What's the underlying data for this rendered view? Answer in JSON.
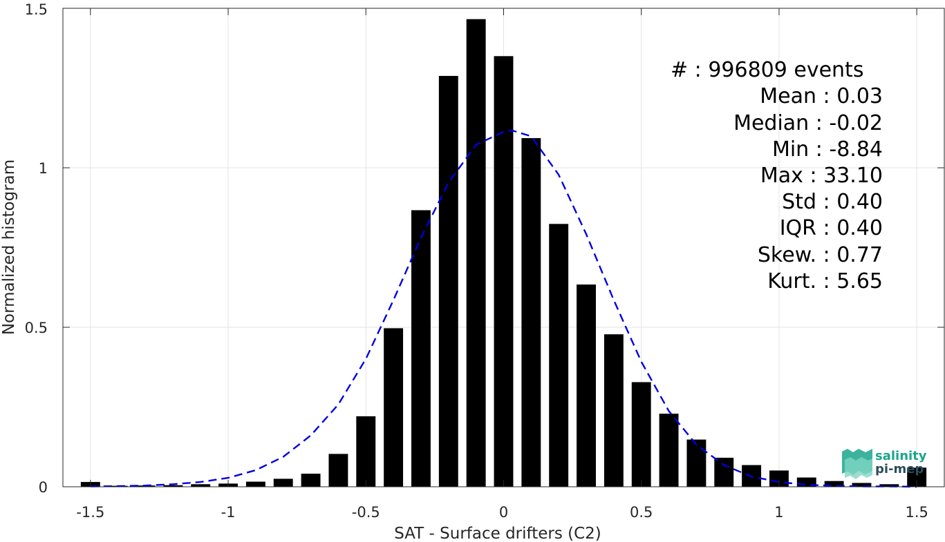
{
  "chart_data": {
    "type": "bar",
    "xlabel": "SAT - Surface drifters (C2)",
    "ylabel": "Normalized histogram",
    "xlim": [
      -1.6,
      1.6
    ],
    "ylim": [
      0,
      1.5
    ],
    "xticks": [
      -1.5,
      -1,
      -0.5,
      0,
      0.5,
      1,
      1.5
    ],
    "xtick_labels": [
      "-1.5",
      "-1",
      "-0.5",
      "0",
      "0.5",
      "1",
      "1.5"
    ],
    "yticks": [
      0,
      0.5,
      1,
      1.5
    ],
    "ytick_labels": [
      "0",
      "0.5",
      "1",
      "1.5"
    ],
    "grid": true,
    "bar_width": 0.07,
    "bar_color": "#000000",
    "bars": {
      "x": [
        -1.5,
        -1.4,
        -1.3,
        -1.2,
        -1.1,
        -1.0,
        -0.9,
        -0.8,
        -0.7,
        -0.6,
        -0.5,
        -0.4,
        -0.3,
        -0.2,
        -0.1,
        0.0,
        0.1,
        0.2,
        0.3,
        0.4,
        0.5,
        0.6,
        0.7,
        0.8,
        0.9,
        1.0,
        1.1,
        1.2,
        1.3,
        1.4,
        1.5
      ],
      "values": [
        0.015,
        0.003,
        0.004,
        0.005,
        0.008,
        0.01,
        0.016,
        0.025,
        0.041,
        0.103,
        0.221,
        0.497,
        0.867,
        1.288,
        1.466,
        1.35,
        1.093,
        0.824,
        0.634,
        0.478,
        0.328,
        0.229,
        0.148,
        0.091,
        0.068,
        0.051,
        0.029,
        0.018,
        0.012,
        0.008,
        0.06
      ]
    },
    "fit_curve": {
      "style": "dashed",
      "color": "#0000e0",
      "x": [
        -1.5,
        -1.4,
        -1.3,
        -1.2,
        -1.1,
        -1.0,
        -0.9,
        -0.8,
        -0.7,
        -0.6,
        -0.5,
        -0.4,
        -0.3,
        -0.2,
        -0.1,
        0.0,
        0.03,
        0.1,
        0.2,
        0.3,
        0.4,
        0.5,
        0.6,
        0.7,
        0.8,
        0.9,
        1.0,
        1.1,
        1.2,
        1.3,
        1.4,
        1.5
      ],
      "y": [
        0.001,
        0.002,
        0.004,
        0.008,
        0.015,
        0.028,
        0.052,
        0.094,
        0.161,
        0.258,
        0.401,
        0.585,
        0.781,
        0.954,
        1.072,
        1.113,
        1.117,
        1.099,
        0.978,
        0.792,
        0.585,
        0.392,
        0.237,
        0.132,
        0.068,
        0.032,
        0.015,
        0.006,
        0.003,
        0.001,
        0.001,
        0.0
      ]
    }
  },
  "stats": [
    {
      "label": "#  ",
      "value": ": 996809 events"
    },
    {
      "label": "Mean",
      "value": ": 0.03"
    },
    {
      "label": "Median",
      "value": ": -0.02"
    },
    {
      "label": "Min",
      "value": ": -8.84"
    },
    {
      "label": "Max",
      "value": ": 33.10"
    },
    {
      "label": "Std",
      "value": ": 0.40"
    },
    {
      "label": "IQR",
      "value": ": 0.40"
    },
    {
      "label": "Skew.",
      "value": ": 0.77"
    },
    {
      "label": "Kurt.",
      "value": ": 5.65"
    }
  ],
  "logo": {
    "line1": "salinity",
    "line2": "pi-mep",
    "color_primary": "#1aa68c",
    "color_secondary": "#2a4d5c"
  }
}
